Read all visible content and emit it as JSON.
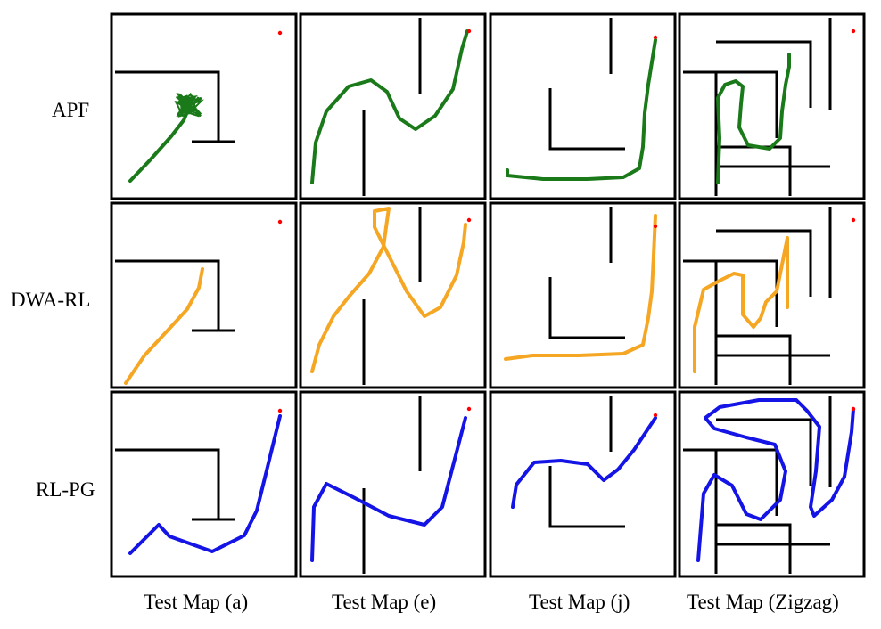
{
  "rows": [
    {
      "label": "APF",
      "color": "#1a7a1a",
      "style": "jittery"
    },
    {
      "label": "DWA-RL",
      "color": "#f5a623",
      "style": "smooth"
    },
    {
      "label": "RL-PG",
      "color": "#1414e6",
      "style": "clean"
    }
  ],
  "columns": [
    {
      "label": "Test Map (a)",
      "map": "a"
    },
    {
      "label": "Test Map (e)",
      "map": "e"
    },
    {
      "label": "Test Map (j)",
      "map": "j"
    },
    {
      "label": "Test Map (Zigzag)",
      "map": "zigzag"
    }
  ],
  "goal_color": "#ff0000",
  "wall_color": "#000000"
}
